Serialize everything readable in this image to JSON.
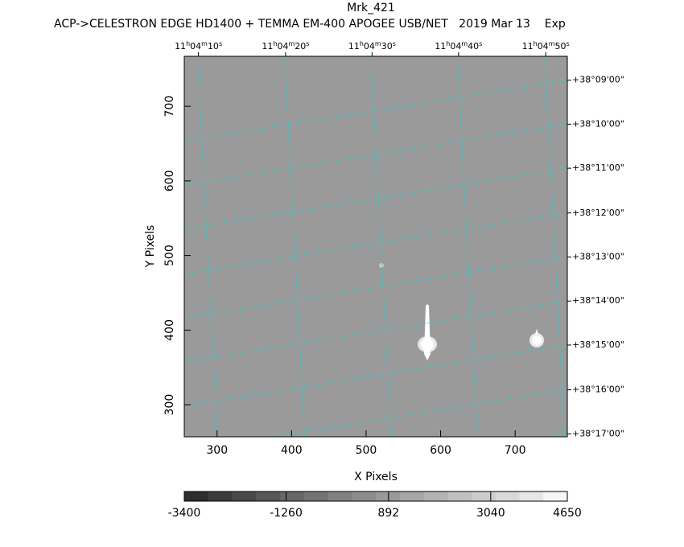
{
  "chart_data": {
    "type": "image",
    "title": "Mrk_421",
    "subtitle": "ACP->CELESTRON EDGE HD1400 + TEMMA EM-400 APOGEE USB/NET   2019 Mar 13    Exp",
    "x_label": "X Pixels",
    "y_label": "Y Pixels",
    "background": "#9a9a9a",
    "grid_color": "#22d3d3",
    "grid": true,
    "xlim": [
      256,
      770
    ],
    "ylim": [
      257,
      767
    ],
    "xticks": [
      300,
      400,
      500,
      600,
      700
    ],
    "yticks": [
      300,
      400,
      500,
      600,
      700
    ],
    "top_ticks": [
      {
        "value": 275,
        "label": "11h04m10s"
      },
      {
        "value": 392,
        "label": "11h04m20s"
      },
      {
        "value": 508,
        "label": "11h04m30s"
      },
      {
        "value": 624,
        "label": "11h04m40s"
      },
      {
        "value": 741,
        "label": "11h04m50s"
      }
    ],
    "right_ticks": [
      {
        "value": 735,
        "label": "+38°09'00\""
      },
      {
        "value": 676,
        "label": "+38°10'00\""
      },
      {
        "value": 617,
        "label": "+38°11'00\""
      },
      {
        "value": 557,
        "label": "+38°12'00\""
      },
      {
        "value": 498,
        "label": "+38°13'00\""
      },
      {
        "value": 439,
        "label": "+38°14'00\""
      },
      {
        "value": 380,
        "label": "+38°15'00\""
      },
      {
        "value": 320,
        "label": "+38°16'00\""
      },
      {
        "value": 261,
        "label": "+38°17'00\""
      }
    ],
    "colorbar": {
      "clim": [
        -3400,
        4650
      ],
      "ticks": [
        -3400,
        -1260,
        892,
        3040,
        4650
      ],
      "colors": [
        "#2e2e2e",
        "#3c3c3c",
        "#4a4a4a",
        "#585858",
        "#666666",
        "#737373",
        "#808080",
        "#8c8c8c",
        "#999999",
        "#a6a6a6",
        "#b3b3b3",
        "#c0c0c0",
        "#cccccc",
        "#d9d9d9",
        "#e6e6e6",
        "#f6f6f6"
      ]
    }
  }
}
